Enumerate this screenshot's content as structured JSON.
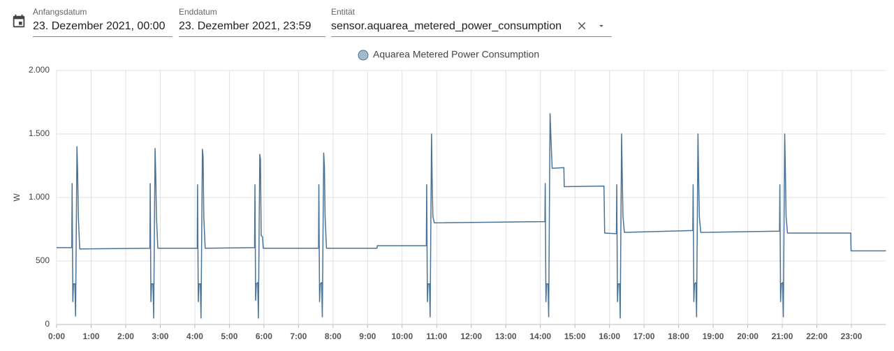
{
  "header": {
    "start_label": "Anfangsdatum",
    "start_value": "23. Dezember 2021, 00:00",
    "end_label": "Enddatum",
    "end_value": "23. Dezember 2021, 23:59",
    "entity_label": "Entität",
    "entity_value": "sensor.aquarea_metered_power_consumption"
  },
  "chart_data": {
    "type": "line",
    "y_label": "W",
    "grid": true,
    "legend": "top",
    "xlim": [
      0,
      24
    ],
    "xticks": [
      {
        "value": 0,
        "label": "0:00"
      },
      {
        "value": 1,
        "label": "1:00"
      },
      {
        "value": 2,
        "label": "2:00"
      },
      {
        "value": 3,
        "label": "3:00"
      },
      {
        "value": 4,
        "label": "4:00"
      },
      {
        "value": 5,
        "label": "5:00"
      },
      {
        "value": 6,
        "label": "6:00"
      },
      {
        "value": 7,
        "label": "7:00"
      },
      {
        "value": 8,
        "label": "8:00"
      },
      {
        "value": 9,
        "label": "9:00"
      },
      {
        "value": 10,
        "label": "10:00"
      },
      {
        "value": 11,
        "label": "11:00"
      },
      {
        "value": 12,
        "label": "12:00"
      },
      {
        "value": 13,
        "label": "13:00"
      },
      {
        "value": 14,
        "label": "14:00"
      },
      {
        "value": 15,
        "label": "15:00"
      },
      {
        "value": 16,
        "label": "16:00"
      },
      {
        "value": 17,
        "label": "17:00"
      },
      {
        "value": 18,
        "label": "18:00"
      },
      {
        "value": 19,
        "label": "19:00"
      },
      {
        "value": 20,
        "label": "20:00"
      },
      {
        "value": 21,
        "label": "21:00"
      },
      {
        "value": 22,
        "label": "22:00"
      },
      {
        "value": 23,
        "label": "23:00"
      }
    ],
    "ylim": [
      0,
      2000
    ],
    "yticks": [
      0,
      500,
      {
        "value": 1000,
        "label": "1.000"
      },
      {
        "value": 1500,
        "label": "1.500"
      },
      {
        "value": 2000,
        "label": "2.000"
      }
    ],
    "x": [
      0,
      0.44,
      0.45,
      0.47,
      0.49,
      0.53,
      0.55,
      0.59,
      0.61,
      0.63,
      0.67,
      2.7,
      2.71,
      2.73,
      2.75,
      2.79,
      2.81,
      2.85,
      2.87,
      2.89,
      2.93,
      4.07,
      4.08,
      4.1,
      4.12,
      4.16,
      4.18,
      4.22,
      4.24,
      4.26,
      4.3,
      5.73,
      5.74,
      5.76,
      5.78,
      5.82,
      5.84,
      5.88,
      5.9,
      5.92,
      5.96,
      5.98,
      7.58,
      7.59,
      7.61,
      7.63,
      7.67,
      7.69,
      7.73,
      7.75,
      7.77,
      7.81,
      9.27,
      9.28,
      10.7,
      10.71,
      10.73,
      10.75,
      10.79,
      10.81,
      10.85,
      10.87,
      10.89,
      10.93,
      14.13,
      14.14,
      14.16,
      14.18,
      14.22,
      14.24,
      14.28,
      14.3,
      14.34,
      14.68,
      14.69,
      15.84,
      15.86,
      16.2,
      16.21,
      16.23,
      16.25,
      16.29,
      16.31,
      16.35,
      16.37,
      16.39,
      16.43,
      18.41,
      18.42,
      18.44,
      18.46,
      18.5,
      18.52,
      18.56,
      18.58,
      18.6,
      18.64,
      20.92,
      20.93,
      20.95,
      20.97,
      21.01,
      21.03,
      21.07,
      21.09,
      21.11,
      21.15,
      22.98,
      22.99,
      24
    ],
    "series": [
      {
        "name": "Aquarea Metered Power Consumption",
        "color": "#4a7397",
        "values": [
          605,
          605,
          1110,
          180,
          320,
          320,
          65,
          1400,
          1200,
          850,
          595,
          600,
          1110,
          180,
          320,
          320,
          50,
          1385,
          1180,
          850,
          600,
          600,
          1100,
          180,
          320,
          320,
          50,
          1380,
          1320,
          850,
          600,
          605,
          1100,
          190,
          320,
          330,
          50,
          1340,
          1300,
          700,
          690,
          600,
          600,
          1100,
          180,
          320,
          330,
          60,
          1350,
          1250,
          850,
          600,
          600,
          620,
          620,
          1100,
          180,
          320,
          320,
          60,
          1500,
          1100,
          850,
          800,
          810,
          1110,
          180,
          320,
          320,
          60,
          1660,
          1510,
          1230,
          1235,
          1085,
          1090,
          720,
          715,
          1100,
          180,
          320,
          320,
          50,
          1500,
          1150,
          850,
          725,
          740,
          1100,
          180,
          320,
          330,
          60,
          1500,
          1150,
          850,
          725,
          735,
          1100,
          180,
          320,
          330,
          60,
          1500,
          1200,
          850,
          720,
          720,
          580,
          580
        ]
      }
    ]
  }
}
